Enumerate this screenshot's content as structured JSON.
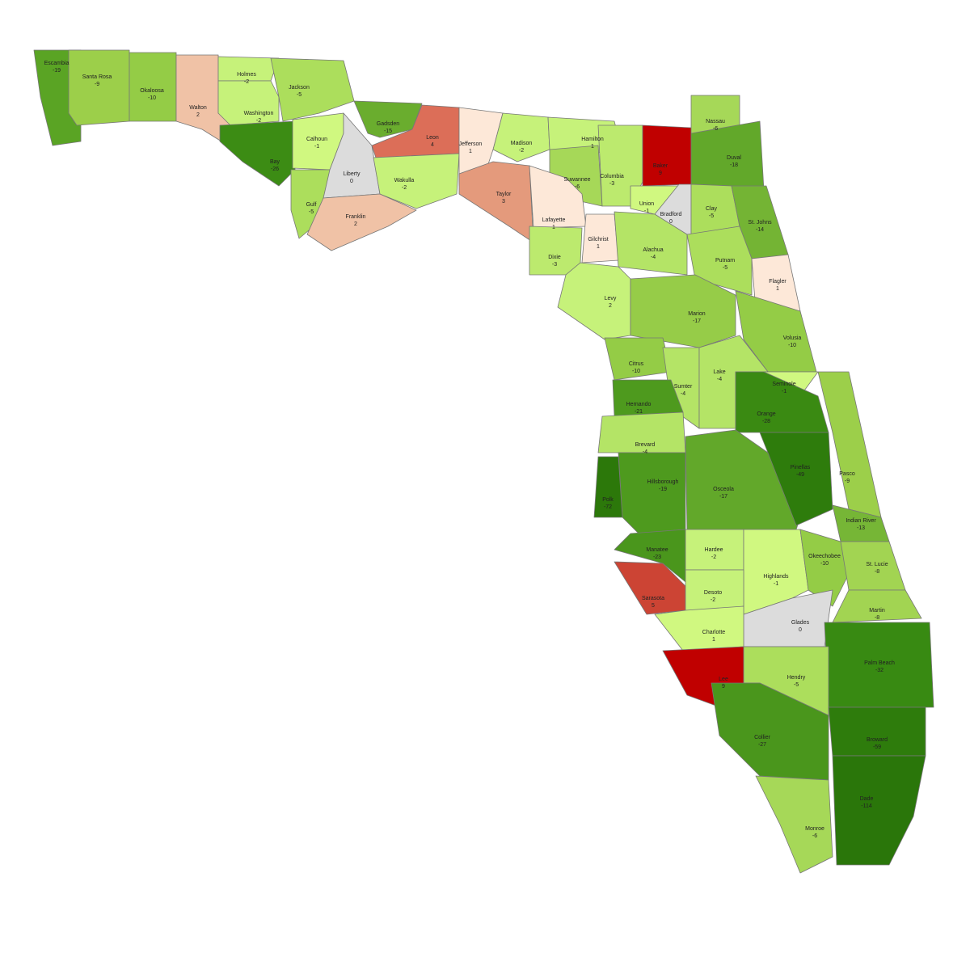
{
  "map": {
    "counties": [
      {
        "name": "Escambia",
        "value": -19,
        "color": "#5aa424"
      },
      {
        "name": "Santa Rosa",
        "value": -9,
        "color": "#9ccf4a"
      },
      {
        "name": "Okaloosa",
        "value": -10,
        "color": "#94cc46"
      },
      {
        "name": "Walton",
        "value": 2,
        "color": "#f0c2a6"
      },
      {
        "name": "Holmes",
        "value": -2,
        "color": "#c6f27a"
      },
      {
        "name": "Washington",
        "value": -2,
        "color": "#c6f27a"
      },
      {
        "name": "Jackson",
        "value": -5,
        "color": "#acde5c"
      },
      {
        "name": "Bay",
        "value": -26,
        "color": "#3c8c14"
      },
      {
        "name": "Calhoun",
        "value": -1,
        "color": "#d0f880"
      },
      {
        "name": "Gulf",
        "value": -5,
        "color": "#acde5c"
      },
      {
        "name": "Liberty",
        "value": 0,
        "color": "#dcdcdc"
      },
      {
        "name": "Franklin",
        "value": 2,
        "color": "#f0c2a6"
      },
      {
        "name": "Gadsden",
        "value": -15,
        "color": "#6aad2e"
      },
      {
        "name": "Leon",
        "value": 4,
        "color": "#dc6e58"
      },
      {
        "name": "Wakulla",
        "value": -2,
        "color": "#c6f27a"
      },
      {
        "name": "Jefferson",
        "value": 1,
        "color": "#fde8d8"
      },
      {
        "name": "Madison",
        "value": -2,
        "color": "#c6f27a"
      },
      {
        "name": "Taylor",
        "value": 3,
        "color": "#e49a7c"
      },
      {
        "name": "Hamilton",
        "value": 1,
        "color": "#c6f27a"
      },
      {
        "name": "Suwannee",
        "value": -6,
        "color": "#a6d858"
      },
      {
        "name": "Lafayette",
        "value": 1,
        "color": "#fde8d8"
      },
      {
        "name": "Columbia",
        "value": -3,
        "color": "#bcea6e"
      },
      {
        "name": "Baker",
        "value": 9,
        "color": "#c00000"
      },
      {
        "name": "Nassau",
        "value": -6,
        "color": "#a6d858"
      },
      {
        "name": "Duval",
        "value": -18,
        "color": "#62a82a"
      },
      {
        "name": "Union",
        "value": -1,
        "color": "#d0f880"
      },
      {
        "name": "Bradford",
        "value": 0,
        "color": "#dcdcdc"
      },
      {
        "name": "Clay",
        "value": -5,
        "color": "#acde5c"
      },
      {
        "name": "St. Johns",
        "value": -14,
        "color": "#74b434"
      },
      {
        "name": "Gilchrist",
        "value": 1,
        "color": "#fde8d8"
      },
      {
        "name": "Dixie",
        "value": -3,
        "color": "#bcea6e"
      },
      {
        "name": "Alachua",
        "value": -4,
        "color": "#b4e466"
      },
      {
        "name": "Putnam",
        "value": -5,
        "color": "#acde5c"
      },
      {
        "name": "Flagler",
        "value": 1,
        "color": "#fde8d8"
      },
      {
        "name": "Levy",
        "value": 2,
        "color": "#c6f27a"
      },
      {
        "name": "Marion",
        "value": -17,
        "color": "#96cc48"
      },
      {
        "name": "Volusia",
        "value": -10,
        "color": "#94cc46"
      },
      {
        "name": "Citrus",
        "value": -10,
        "color": "#94cc46"
      },
      {
        "name": "Sumter",
        "value": -4,
        "color": "#b4e466"
      },
      {
        "name": "Lake",
        "value": -4,
        "color": "#b4e466"
      },
      {
        "name": "Seminole",
        "value": -1,
        "color": "#d0f880"
      },
      {
        "name": "Hernando",
        "value": -21,
        "color": "#4e9a1e"
      },
      {
        "name": "Orange",
        "value": -28,
        "color": "#3a8a12"
      },
      {
        "name": "Pasco",
        "value": -9,
        "color": "#9ccf4a"
      },
      {
        "name": "Brevard",
        "value": -4,
        "color": "#b4e466"
      },
      {
        "name": "Hillsborough",
        "value": -19,
        "color": "#4e9a1e"
      },
      {
        "name": "Polk",
        "value": -72,
        "color": "#2c780a"
      },
      {
        "name": "Osceola",
        "value": -17,
        "color": "#62a82a"
      },
      {
        "name": "Pinellas",
        "value": -49,
        "color": "#2e7c0c"
      },
      {
        "name": "Indian River",
        "value": -13,
        "color": "#76b636"
      },
      {
        "name": "Manatee",
        "value": -23,
        "color": "#4a961c"
      },
      {
        "name": "Hardee",
        "value": -2,
        "color": "#c6f27a"
      },
      {
        "name": "Highlands",
        "value": -1,
        "color": "#d0f880"
      },
      {
        "name": "Okeechobee",
        "value": -10,
        "color": "#94cc46"
      },
      {
        "name": "St. Lucie",
        "value": -8,
        "color": "#a2d452"
      },
      {
        "name": "Sarasota",
        "value": 5,
        "color": "#cc4434"
      },
      {
        "name": "Desoto",
        "value": -2,
        "color": "#c6f27a"
      },
      {
        "name": "Glades",
        "value": 0,
        "color": "#dcdcdc"
      },
      {
        "name": "Martin",
        "value": -8,
        "color": "#a2d452"
      },
      {
        "name": "Charlotte",
        "value": 1,
        "color": "#d0f880"
      },
      {
        "name": "Palm Beach",
        "value": -32,
        "color": "#388a12"
      },
      {
        "name": "Lee",
        "value": 9,
        "color": "#c00000"
      },
      {
        "name": "Hendry",
        "value": -5,
        "color": "#acde5c"
      },
      {
        "name": "Collier",
        "value": -27,
        "color": "#4a961c"
      },
      {
        "name": "Broward",
        "value": -59,
        "color": "#2e7c0c"
      },
      {
        "name": "Monroe",
        "value": -6,
        "color": "#a6d858"
      },
      {
        "name": "Dade",
        "value": -114,
        "color": "#2a760a"
      }
    ]
  }
}
